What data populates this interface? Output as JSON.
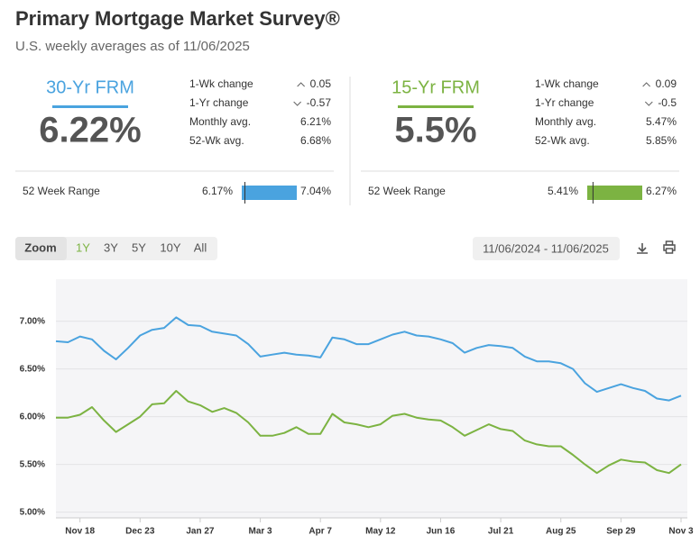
{
  "header": {
    "title": "Primary Mortgage Market Survey®",
    "subtitle": "U.S. weekly averages as of 11/06/2025"
  },
  "cards": [
    {
      "title": "30-Yr FRM",
      "color": "#4aa3df",
      "rate": 6.22,
      "rate_label": "6.22%",
      "stats": [
        {
          "label": "1-Wk change",
          "value": "0.05",
          "direction": "up"
        },
        {
          "label": "1-Yr change",
          "value": "-0.57",
          "direction": "down"
        },
        {
          "label": "Monthly avg.",
          "value": "6.21%"
        },
        {
          "label": "52-Wk avg.",
          "value": "6.68%"
        }
      ],
      "range": {
        "label": "52 Week Range",
        "low": 6.17,
        "low_label": "6.17%",
        "high": 7.04,
        "high_label": "7.04%"
      }
    },
    {
      "title": "15-Yr FRM",
      "color": "#7cb342",
      "rate": 5.5,
      "rate_label": "5.5%",
      "stats": [
        {
          "label": "1-Wk change",
          "value": "0.09",
          "direction": "up"
        },
        {
          "label": "1-Yr change",
          "value": "-0.5",
          "direction": "down"
        },
        {
          "label": "Monthly avg.",
          "value": "5.47%"
        },
        {
          "label": "52-Wk avg.",
          "value": "5.85%"
        }
      ],
      "range": {
        "label": "52 Week Range",
        "low": 5.41,
        "low_label": "5.41%",
        "high": 6.27,
        "high_label": "6.27%"
      }
    }
  ],
  "toolbar": {
    "zoom": "Zoom",
    "periods": [
      "1Y",
      "3Y",
      "5Y",
      "10Y",
      "All"
    ],
    "active_period": 0,
    "date_range": "11/06/2024 - 11/06/2025"
  },
  "chart_data": {
    "type": "line",
    "categories": [
      null,
      null,
      "Nov 18",
      null,
      null,
      null,
      null,
      "Dec 23",
      null,
      null,
      null,
      null,
      "Jan 27",
      null,
      null,
      null,
      null,
      "Mar 3",
      null,
      null,
      null,
      null,
      "Apr 7",
      null,
      null,
      null,
      null,
      "May 12",
      null,
      null,
      null,
      null,
      "Jun 16",
      null,
      null,
      null,
      null,
      "Jul 21",
      null,
      null,
      null,
      null,
      "Aug 25",
      null,
      null,
      null,
      null,
      "Sep 29",
      null,
      null,
      null,
      null,
      "Nov 3"
    ],
    "series": [
      {
        "name": "30-Yr FRM",
        "color": "#4aa3df",
        "values": [
          6.79,
          6.78,
          6.84,
          6.81,
          6.69,
          6.6,
          6.72,
          6.85,
          6.91,
          6.93,
          7.04,
          6.96,
          6.95,
          6.89,
          6.87,
          6.85,
          6.76,
          6.63,
          6.65,
          6.67,
          6.65,
          6.64,
          6.62,
          6.83,
          6.81,
          6.76,
          6.76,
          6.81,
          6.86,
          6.89,
          6.85,
          6.84,
          6.81,
          6.77,
          6.67,
          6.72,
          6.75,
          6.74,
          6.72,
          6.63,
          6.58,
          6.58,
          6.56,
          6.5,
          6.35,
          6.26,
          6.3,
          6.34,
          6.3,
          6.27,
          6.19,
          6.17,
          6.22
        ]
      },
      {
        "name": "15-Yr FRM",
        "color": "#7cb342",
        "values": [
          5.99,
          5.99,
          6.02,
          6.1,
          5.96,
          5.84,
          5.92,
          6.0,
          6.13,
          6.14,
          6.27,
          6.16,
          6.12,
          6.05,
          6.09,
          6.04,
          5.94,
          5.8,
          5.8,
          5.83,
          5.89,
          5.82,
          5.82,
          6.03,
          5.94,
          5.92,
          5.89,
          5.92,
          6.01,
          6.03,
          5.99,
          5.97,
          5.96,
          5.89,
          5.8,
          5.86,
          5.92,
          5.87,
          5.85,
          5.75,
          5.71,
          5.69,
          5.69,
          5.6,
          5.5,
          5.41,
          5.49,
          5.55,
          5.53,
          5.52,
          5.44,
          5.41,
          5.5
        ]
      }
    ],
    "ylim": [
      4.94,
      7.44
    ],
    "yticks": [
      {
        "value": 5,
        "label": "5.00%"
      },
      {
        "value": 5.5,
        "label": "5.50%"
      },
      {
        "value": 6,
        "label": "6.00%"
      },
      {
        "value": 6.5,
        "label": "6.50%"
      },
      {
        "value": 7,
        "label": "7.00%"
      }
    ],
    "grid": true
  }
}
